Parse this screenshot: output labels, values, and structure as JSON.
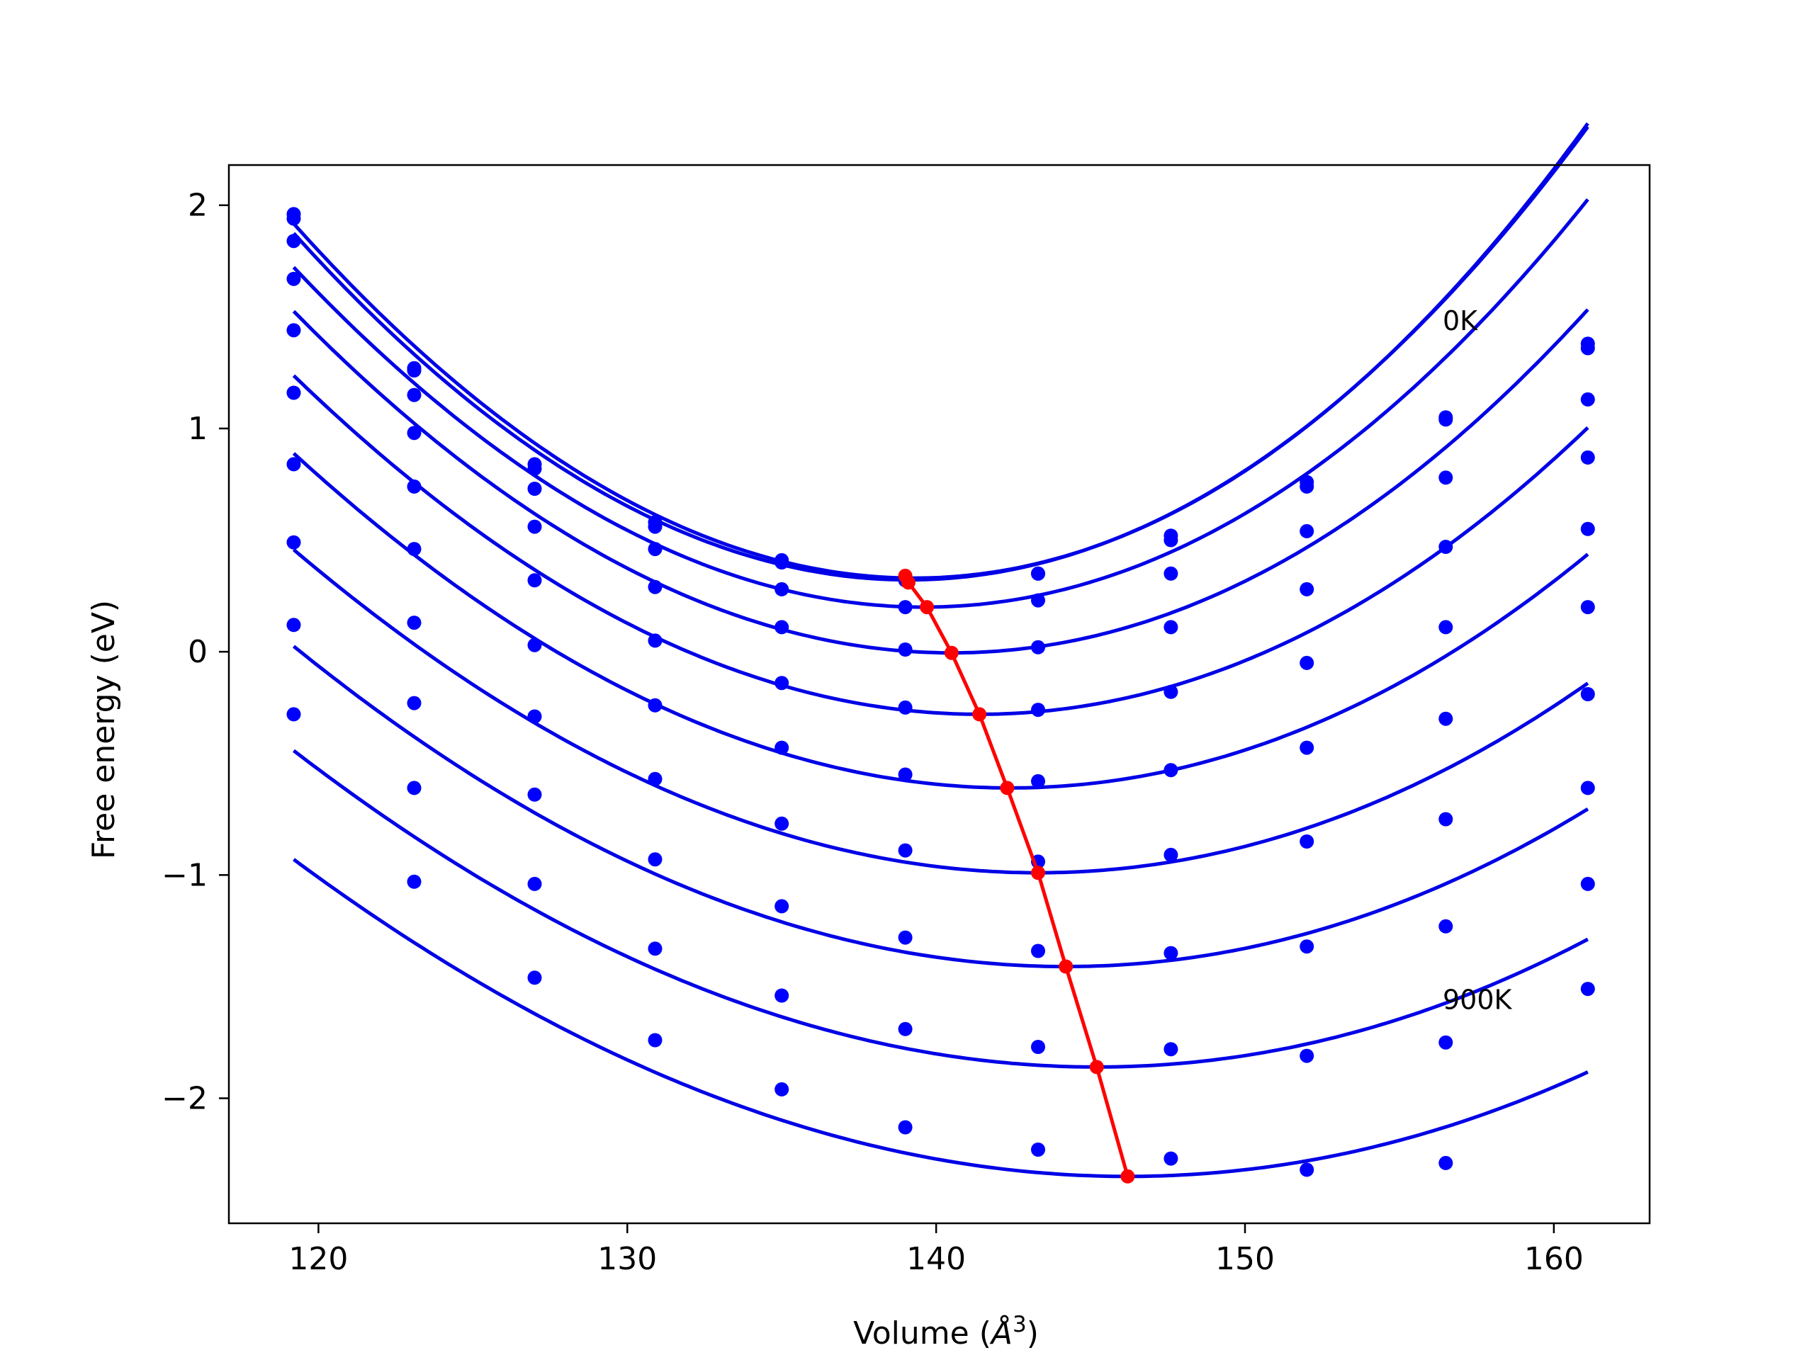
{
  "chart_data": {
    "type": "scatter",
    "title": "",
    "xlabel": "Volume (",
    "xlabel_symbol": "Å",
    "xlabel_exponent": "3",
    "xlabel_suffix": ")",
    "ylabel": "Free energy (eV)",
    "xlim": [
      117.1,
      163.1
    ],
    "ylim": [
      -2.56,
      2.18
    ],
    "xticks": [
      120,
      130,
      140,
      150,
      160
    ],
    "xtick_labels": [
      "120",
      "130",
      "140",
      "150",
      "160"
    ],
    "yticks": [
      -2,
      -1,
      0,
      1,
      2
    ],
    "ytick_labels": [
      "−2",
      "−1",
      "0",
      "1",
      "2"
    ],
    "grid": false,
    "legend": "none",
    "annotations": [
      {
        "text": "0K",
        "x": 156.4,
        "y": 1.44
      },
      {
        "text": "900K",
        "x": 156.4,
        "y": -1.6
      }
    ],
    "colors": {
      "fit": "#0000e6",
      "points": "#0000ff",
      "minima": "#ff0000"
    },
    "x": [
      119.2,
      123.1,
      127.0,
      130.9,
      135.0,
      139.0,
      143.3,
      147.6,
      152.0,
      156.5,
      161.1
    ],
    "series": [
      {
        "label_text": "0K",
        "points": [
          1.96,
          1.27,
          0.84,
          0.58,
          0.41,
          0.33,
          0.35,
          0.52,
          0.76,
          1.05,
          1.38
        ],
        "fit": {
          "vmin": 139.3,
          "emin": 0.33,
          "a": 0.0041,
          "b": 8.5e-06
        }
      },
      {
        "label_text": "",
        "points": [
          1.94,
          1.26,
          0.82,
          0.56,
          0.4,
          0.32,
          0.35,
          0.5,
          0.74,
          1.04,
          1.36
        ],
        "fit": {
          "vmin": 139.1,
          "emin": 0.322,
          "a": 0.00405,
          "b": 6.5e-06
        }
      },
      {
        "label_text": "",
        "points": [
          1.84,
          1.15,
          0.73,
          0.46,
          0.28,
          0.2,
          0.23,
          0.35,
          0.54,
          0.78,
          1.13
        ],
        "fit": {
          "vmin": 139.6,
          "emin": 0.2,
          "a": 0.0038,
          "b": 7e-06
        }
      },
      {
        "label_text": "",
        "points": [
          1.67,
          0.98,
          0.56,
          0.29,
          0.11,
          0.01,
          0.02,
          0.11,
          0.28,
          0.47,
          0.87
        ],
        "fit": {
          "vmin": 140.5,
          "emin": -0.005,
          "a": 0.0035,
          "b": 6e-06
        }
      },
      {
        "label_text": "",
        "points": [
          1.44,
          0.74,
          0.32,
          0.05,
          -0.14,
          -0.25,
          -0.26,
          -0.18,
          -0.05,
          0.11,
          0.55
        ],
        "fit": {
          "vmin": 141.4,
          "emin": -0.28,
          "a": 0.0032,
          "b": 5.5e-06
        }
      },
      {
        "label_text": "",
        "points": [
          1.16,
          0.46,
          0.03,
          -0.24,
          -0.43,
          -0.55,
          -0.58,
          -0.53,
          -0.43,
          -0.3,
          0.2
        ],
        "fit": {
          "vmin": 142.4,
          "emin": -0.61,
          "a": 0.0029,
          "b": 5e-06
        }
      },
      {
        "label_text": "",
        "points": [
          0.84,
          0.13,
          -0.29,
          -0.57,
          -0.77,
          -0.89,
          -0.94,
          -0.91,
          -0.85,
          -0.75,
          -0.19
        ],
        "fit": {
          "vmin": 143.3,
          "emin": -0.99,
          "a": 0.0026,
          "b": 4.5e-06
        }
      },
      {
        "label_text": "",
        "points": [
          0.49,
          -0.23,
          -0.64,
          -0.93,
          -1.14,
          -1.28,
          -1.34,
          -1.35,
          -1.32,
          -1.23,
          -0.61
        ],
        "fit": {
          "vmin": 144.2,
          "emin": -1.41,
          "a": 0.0024,
          "b": 4.2e-06
        }
      },
      {
        "label_text": "",
        "points": [
          0.12,
          -0.61,
          -1.04,
          -1.33,
          -1.54,
          -1.69,
          -1.77,
          -1.78,
          -1.81,
          -1.75,
          -1.04
        ],
        "fit": {
          "vmin": 145.2,
          "emin": -1.86,
          "a": 0.0022,
          "b": 4e-06
        }
      },
      {
        "label_text": "900K",
        "points": [
          -0.28,
          -1.03,
          -1.46,
          -1.74,
          -1.96,
          -2.13,
          -2.23,
          -2.27,
          -2.32,
          -2.29,
          -1.51
        ],
        "fit": {
          "vmin": 146.2,
          "emin": -2.35,
          "a": 0.00205,
          "b": 3.8e-06
        }
      }
    ],
    "minima_line": {
      "x": [
        139.0,
        139.1,
        139.7,
        140.5,
        141.4,
        142.3,
        143.3,
        144.2,
        145.2,
        146.2
      ],
      "y": [
        0.34,
        0.31,
        0.2,
        -0.005,
        -0.28,
        -0.61,
        -0.99,
        -1.41,
        -1.86,
        -2.35
      ]
    }
  }
}
